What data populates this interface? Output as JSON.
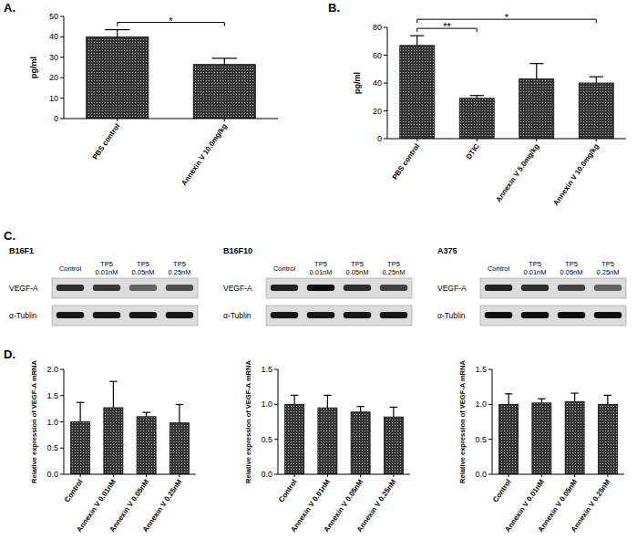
{
  "panels": [
    "A.",
    "B.",
    "C.",
    "D."
  ],
  "chart_data": [
    {
      "type": "bar",
      "ylabel": "pg/ml",
      "categories": [
        "PBS control",
        "Annexin V 10.0mg/kg"
      ],
      "values": [
        40,
        26.5
      ],
      "errors": [
        3.5,
        3
      ],
      "color": "#333333",
      "grid": false,
      "ylim": [
        0,
        50
      ],
      "yticks": [
        0,
        10,
        20,
        30,
        40,
        50
      ],
      "annotations": [
        {
          "between": [
            "PBS control",
            "Annexin V 10.0mg/kg"
          ],
          "text": "*"
        }
      ]
    },
    {
      "type": "bar",
      "ylabel": "pg/ml",
      "categories": [
        "PBS control",
        "DTIC",
        "Annexin V 5.0mg/kg",
        "Annexin V 10.0mg/kg"
      ],
      "values": [
        67,
        29,
        43,
        40
      ],
      "errors": [
        7,
        2,
        11,
        4.5
      ],
      "color": "#333333",
      "grid": false,
      "ylim": [
        0,
        80
      ],
      "yticks": [
        0,
        20,
        40,
        60,
        80
      ],
      "annotations": [
        {
          "between": [
            "PBS control",
            "DTIC"
          ],
          "text": "**"
        },
        {
          "between": [
            "PBS control",
            "Annexin V 10.0mg/kg"
          ],
          "text": "*"
        }
      ]
    },
    {
      "type": "bar",
      "ylabel": "Relative expression of VEGF-A mRNA",
      "categories": [
        "Control",
        "Annexin V 0.01nM",
        "Annexin V 0.05nM",
        "Annexin V 0.25nM"
      ],
      "values": [
        1.0,
        1.27,
        1.1,
        0.98
      ],
      "errors": [
        0.37,
        0.5,
        0.08,
        0.35
      ],
      "color": "#333333",
      "grid": false,
      "ylim": [
        0,
        2
      ],
      "yticks": [
        {
          "value": 0,
          "label": "0.0"
        },
        {
          "value": 0.5,
          "label": "0.5"
        },
        {
          "value": 1,
          "label": "1.0"
        },
        {
          "value": 1.5,
          "label": "1.5"
        },
        {
          "value": 2,
          "label": "2.0"
        }
      ]
    },
    {
      "type": "bar",
      "ylabel": "Relative expression of VEGF-A mRNA",
      "categories": [
        "Control",
        "Annexin V 0.01nM",
        "Annexin V 0.05nM",
        "Annexin V 0.25nM"
      ],
      "values": [
        1.0,
        0.95,
        0.89,
        0.82
      ],
      "errors": [
        0.13,
        0.18,
        0.08,
        0.14
      ],
      "color": "#333333",
      "grid": false,
      "ylim": [
        0,
        1.5
      ],
      "yticks": [
        {
          "value": 0,
          "label": "0.0"
        },
        {
          "value": 0.5,
          "label": "0.5"
        },
        {
          "value": 1,
          "label": "1.0"
        },
        {
          "value": 1.5,
          "label": "1.5"
        }
      ]
    },
    {
      "type": "bar",
      "ylabel": "Relative expression of VEGF-A mRNA",
      "categories": [
        "Control",
        "Annexin V 0.01nM",
        "Annexin V 0.05nM",
        "Annexin V 0.25nM"
      ],
      "values": [
        1.0,
        1.02,
        1.04,
        1.0
      ],
      "errors": [
        0.15,
        0.06,
        0.12,
        0.13
      ],
      "color": "#333333",
      "grid": false,
      "ylim": [
        0,
        1.5
      ],
      "yticks": [
        {
          "value": 0,
          "label": "0.0"
        },
        {
          "value": 0.5,
          "label": "0.5"
        },
        {
          "value": 1,
          "label": "1.0"
        },
        {
          "value": 1.5,
          "label": "1.5"
        }
      ]
    }
  ],
  "blots": [
    {
      "cell_line": "B16F1",
      "lanes": [
        "Control",
        "TP5 0.01nM",
        "TP5 0.05nM",
        "TP5 0.25nM"
      ],
      "rows": [
        {
          "label": "VEGF-A",
          "intensity": [
            0.8,
            0.75,
            0.55,
            0.65
          ]
        },
        {
          "label": "α-Tublin",
          "intensity": [
            0.9,
            0.9,
            0.9,
            0.9
          ]
        }
      ]
    },
    {
      "cell_line": "B16F10",
      "lanes": [
        "Control",
        "TP5 0.01nM",
        "TP5 0.05nM",
        "TP5 0.25nM"
      ],
      "rows": [
        {
          "label": "VEGF-A",
          "intensity": [
            0.85,
            0.95,
            0.8,
            0.7
          ]
        },
        {
          "label": "α-Tublin",
          "intensity": [
            0.9,
            0.9,
            0.9,
            0.9
          ]
        }
      ]
    },
    {
      "cell_line": "A375",
      "lanes": [
        "Control",
        "TP5 0.01nM",
        "TP5 0.05nM",
        "TP5 0.25nM"
      ],
      "rows": [
        {
          "label": "VEGF-A",
          "intensity": [
            0.85,
            0.8,
            0.7,
            0.55
          ]
        },
        {
          "label": "α-Tublin",
          "intensity": [
            0.95,
            0.95,
            0.95,
            0.95
          ]
        }
      ]
    }
  ]
}
